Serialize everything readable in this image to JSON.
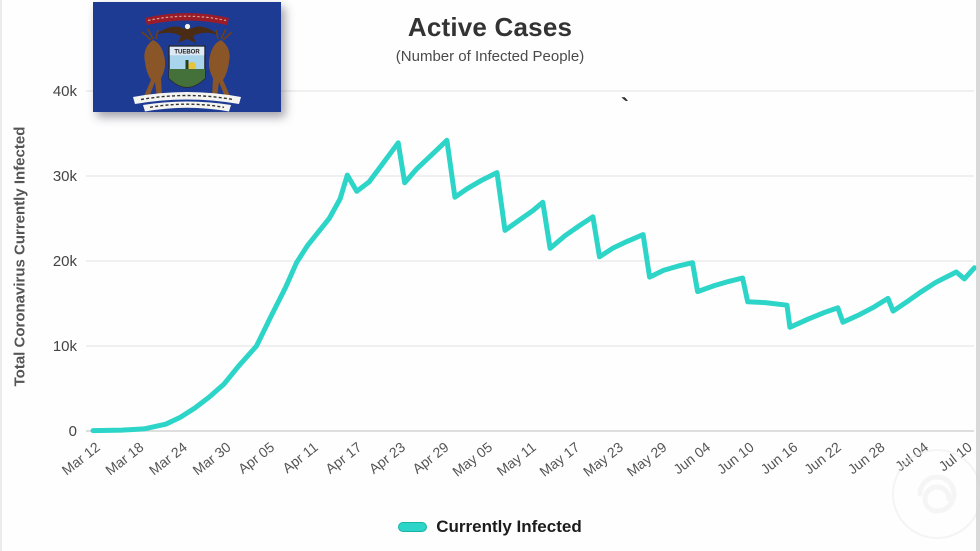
{
  "page": {
    "title": "Active Cases",
    "subtitle": "(Number of Infected People)",
    "stray_mark": "`"
  },
  "flag": {
    "name": "Michigan state flag",
    "shield_text": "TUEBOR",
    "field_color": "#1e3b94"
  },
  "chart_data": {
    "type": "line",
    "title": "Active Cases",
    "subtitle": "(Number of Infected People)",
    "xlabel": "",
    "ylabel": "Total Coronavirus Currently Infected",
    "ylim": [
      0,
      40000
    ],
    "grid": true,
    "grid_color": "#e7e7e7",
    "axis_line_color": "#cccccc",
    "legend_position": "bottom",
    "x_unit": "days since Mar 12",
    "y_ticks": [
      {
        "label": "0",
        "value": 0
      },
      {
        "label": "10k",
        "value": 10000
      },
      {
        "label": "20k",
        "value": 20000
      },
      {
        "label": "30k",
        "value": 30000
      },
      {
        "label": "40k",
        "value": 40000
      }
    ],
    "x_ticks": [
      {
        "label": "Mar 12",
        "day": 0
      },
      {
        "label": "Mar 18",
        "day": 6
      },
      {
        "label": "Mar 24",
        "day": 12
      },
      {
        "label": "Mar 30",
        "day": 18
      },
      {
        "label": "Apr 05",
        "day": 24
      },
      {
        "label": "Apr 11",
        "day": 30
      },
      {
        "label": "Apr 17",
        "day": 36
      },
      {
        "label": "Apr 23",
        "day": 42
      },
      {
        "label": "Apr 29",
        "day": 48
      },
      {
        "label": "May 05",
        "day": 54
      },
      {
        "label": "May 11",
        "day": 60
      },
      {
        "label": "May 17",
        "day": 66
      },
      {
        "label": "May 23",
        "day": 72
      },
      {
        "label": "May 29",
        "day": 78
      },
      {
        "label": "Jun 04",
        "day": 84
      },
      {
        "label": "Jun 10",
        "day": 90
      },
      {
        "label": "Jun 16",
        "day": 96
      },
      {
        "label": "Jun 22",
        "day": 102
      },
      {
        "label": "Jun 28",
        "day": 108
      },
      {
        "label": "Jul 04",
        "day": 114
      },
      {
        "label": "Jul 10",
        "day": 120
      }
    ],
    "series": [
      {
        "name": "Currently Infected",
        "color": "#2cd5c7",
        "points": [
          [
            0,
            50
          ],
          [
            4,
            100
          ],
          [
            7,
            250
          ],
          [
            10,
            800
          ],
          [
            12,
            1600
          ],
          [
            14,
            2700
          ],
          [
            16,
            4000
          ],
          [
            18,
            5500
          ],
          [
            20,
            7600
          ],
          [
            22.5,
            10000
          ],
          [
            24.5,
            13500
          ],
          [
            26.5,
            16900
          ],
          [
            28,
            19800
          ],
          [
            29.5,
            21800
          ],
          [
            31,
            23400
          ],
          [
            32.5,
            25000
          ],
          [
            34,
            27300
          ],
          [
            35,
            30100
          ],
          [
            36.3,
            28200
          ],
          [
            38,
            29300
          ],
          [
            40,
            31600
          ],
          [
            42,
            33900
          ],
          [
            42.9,
            29200
          ],
          [
            44.5,
            30800
          ],
          [
            46.5,
            32400
          ],
          [
            48.7,
            34200
          ],
          [
            49.8,
            27500
          ],
          [
            51.5,
            28500
          ],
          [
            53.5,
            29500
          ],
          [
            55.6,
            30400
          ],
          [
            56.7,
            23600
          ],
          [
            58.5,
            24700
          ],
          [
            60.5,
            25900
          ],
          [
            61.9,
            26900
          ],
          [
            62.9,
            21500
          ],
          [
            65,
            23000
          ],
          [
            67,
            24200
          ],
          [
            68.8,
            25200
          ],
          [
            69.7,
            20500
          ],
          [
            71.5,
            21500
          ],
          [
            73.5,
            22300
          ],
          [
            75.7,
            23100
          ],
          [
            76.6,
            18100
          ],
          [
            78.5,
            18900
          ],
          [
            80.5,
            19400
          ],
          [
            82.5,
            19800
          ],
          [
            83.2,
            16400
          ],
          [
            85.5,
            17100
          ],
          [
            87.5,
            17600
          ],
          [
            89.4,
            18000
          ],
          [
            90.1,
            15200
          ],
          [
            92.5,
            15100
          ],
          [
            95.5,
            14800
          ],
          [
            95.9,
            12200
          ],
          [
            98.5,
            13200
          ],
          [
            100.5,
            13900
          ],
          [
            102.5,
            14500
          ],
          [
            103.2,
            12800
          ],
          [
            105.5,
            13700
          ],
          [
            107.5,
            14600
          ],
          [
            109.4,
            15600
          ],
          [
            110.1,
            14100
          ],
          [
            112,
            15200
          ],
          [
            114,
            16400
          ],
          [
            116,
            17500
          ],
          [
            118.8,
            18700
          ],
          [
            119.9,
            17900
          ],
          [
            121.3,
            19200
          ]
        ]
      }
    ]
  }
}
